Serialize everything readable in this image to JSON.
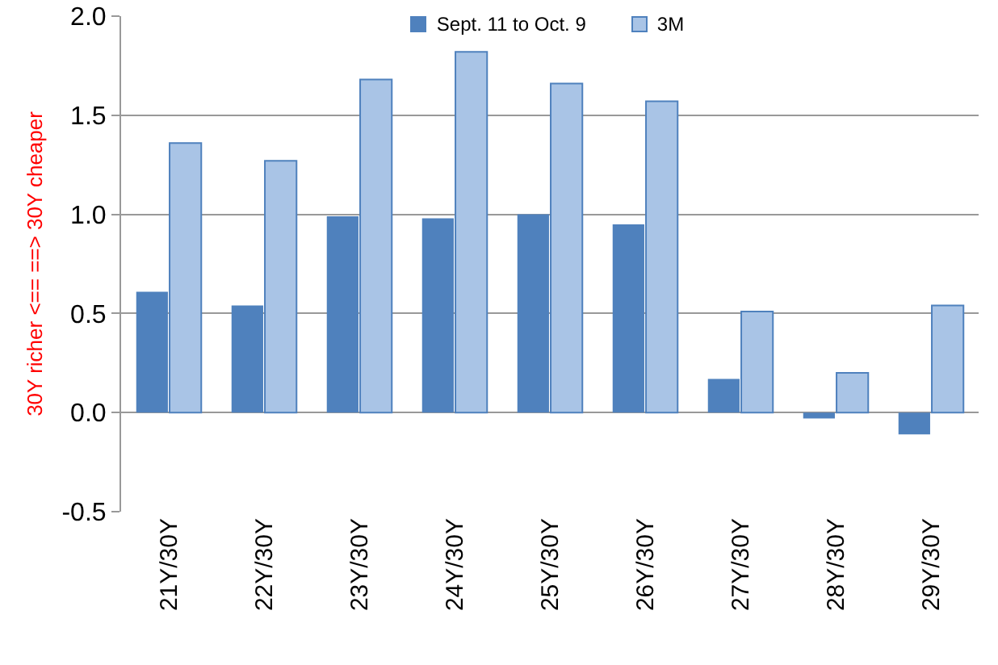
{
  "chart_data": {
    "type": "bar",
    "ylabel": "30Y richer <== ==> 30Y cheaper",
    "categories": [
      "21Y/30Y",
      "22Y/30Y",
      "23Y/30Y",
      "24Y/30Y",
      "25Y/30Y",
      "26Y/30Y",
      "27Y/30Y",
      "28Y/30Y",
      "29Y/30Y"
    ],
    "series": [
      {
        "name": "Sept. 11 to Oct. 9",
        "color": "#4f81bd",
        "values": [
          0.61,
          0.54,
          0.99,
          0.98,
          1.0,
          0.95,
          0.17,
          -0.03,
          -0.11
        ]
      },
      {
        "name": "3M",
        "color": "#a9c4e6",
        "values": [
          1.36,
          1.27,
          1.68,
          1.82,
          1.66,
          1.57,
          0.51,
          0.2,
          0.54
        ]
      }
    ],
    "ylim": [
      -0.5,
      2.0
    ],
    "yticks": [
      {
        "value": -0.5,
        "label": "-0.5"
      },
      {
        "value": 0,
        "label": "0.0"
      },
      {
        "value": 0.5,
        "label": "0.5"
      },
      {
        "value": 1,
        "label": "1.0"
      },
      {
        "value": 1.5,
        "label": "1.5"
      },
      {
        "value": 2,
        "label": "2.0"
      }
    ],
    "grid": "y",
    "legend": "top"
  }
}
